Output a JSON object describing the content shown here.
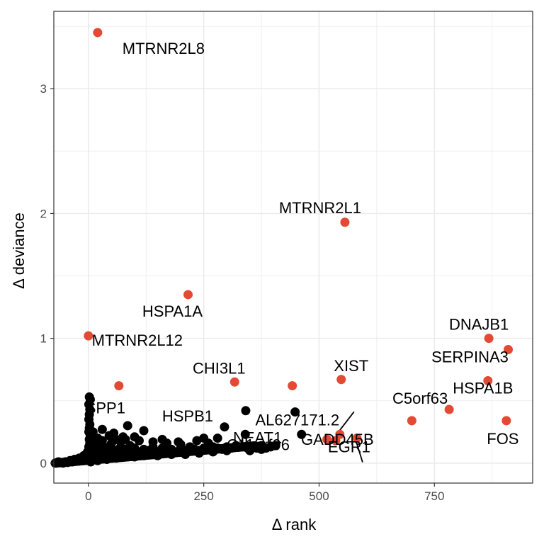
{
  "chart_data": {
    "type": "scatter",
    "xlabel": "Δ rank",
    "ylabel": "Δ deviance",
    "xlim": [
      -75,
      963
    ],
    "ylim": [
      -0.16,
      3.62
    ],
    "x_ticks": [
      0,
      250,
      500,
      750
    ],
    "y_ticks": [
      0,
      1,
      2,
      3
    ],
    "x_tick_labels": [
      "0",
      "250",
      "500",
      "750"
    ],
    "y_tick_labels": [
      "0",
      "1",
      "2",
      "3"
    ],
    "grid": true,
    "colors": {
      "highlight": "#e34a33",
      "default": "#000000",
      "grid": "#ebebeb"
    },
    "highlighted_points": [
      {
        "label": "MTRNR2L8",
        "x": 20,
        "y": 3.45
      },
      {
        "label": "MTRNR2L1",
        "x": 556,
        "y": 1.93
      },
      {
        "label": "HSPA1A",
        "x": 216,
        "y": 1.35
      },
      {
        "label": "MTRNR2L12",
        "x": 0,
        "y": 1.02
      },
      {
        "label": "DNAJB1",
        "x": 868,
        "y": 1.0
      },
      {
        "label": "SERPINA3",
        "x": 910,
        "y": 0.91
      },
      {
        "label": "XIST",
        "x": 548,
        "y": 0.67
      },
      {
        "label": "HSPA1B",
        "x": 866,
        "y": 0.66
      },
      {
        "label": "CHI3L1",
        "x": 317,
        "y": 0.65
      },
      {
        "label": "SPP1",
        "x": 66,
        "y": 0.62
      },
      {
        "label": "",
        "x": 442,
        "y": 0.62
      },
      {
        "label": "C5orf63",
        "x": 782,
        "y": 0.43
      },
      {
        "label": "FOS",
        "x": 906,
        "y": 0.34
      },
      {
        "label": "GADD45B",
        "x": 701,
        "y": 0.34
      },
      {
        "label": "AL627171.2",
        "x": 545,
        "y": 0.23
      },
      {
        "label": "EGR1",
        "x": 582,
        "y": 0.2
      },
      {
        "label": "C11orf96",
        "x": 517,
        "y": 0.19
      },
      {
        "label": "",
        "x": 536,
        "y": 0.18
      }
    ],
    "labeled_other_points": [
      {
        "label": "HSPB1",
        "x": 341,
        "y": 0.42
      },
      {
        "label": "NEAT1",
        "x": 448,
        "y": 0.41
      }
    ],
    "other_points": [
      {
        "x": 2,
        "y": 0.53
      },
      {
        "x": 4,
        "y": 0.51
      },
      {
        "x": 1,
        "y": 0.47
      },
      {
        "x": 3,
        "y": 0.43
      },
      {
        "x": 2,
        "y": 0.39
      },
      {
        "x": 1,
        "y": 0.35
      },
      {
        "x": 3,
        "y": 0.31
      },
      {
        "x": 2,
        "y": 0.28
      },
      {
        "x": 1,
        "y": 0.25
      },
      {
        "x": 4,
        "y": 0.22
      },
      {
        "x": 2,
        "y": 0.19
      },
      {
        "x": 3,
        "y": 0.16
      },
      {
        "x": 1,
        "y": 0.13
      },
      {
        "x": 5,
        "y": 0.11
      },
      {
        "x": -2,
        "y": 0.09
      },
      {
        "x": 6,
        "y": 0.08
      },
      {
        "x": -10,
        "y": 0.06
      },
      {
        "x": -20,
        "y": 0.04
      },
      {
        "x": -30,
        "y": 0.03
      },
      {
        "x": -40,
        "y": 0.02
      },
      {
        "x": -50,
        "y": 0.01
      },
      {
        "x": -60,
        "y": 0.005
      },
      {
        "x": -70,
        "y": 0.0
      },
      {
        "x": -65,
        "y": 0.01
      },
      {
        "x": -55,
        "y": 0.0
      },
      {
        "x": -45,
        "y": 0.005
      },
      {
        "x": -35,
        "y": 0.01
      },
      {
        "x": -25,
        "y": 0.02
      },
      {
        "x": -15,
        "y": 0.03
      },
      {
        "x": -5,
        "y": 0.05
      },
      {
        "x": 10,
        "y": 0.06
      },
      {
        "x": 15,
        "y": 0.08
      },
      {
        "x": 20,
        "y": 0.1
      },
      {
        "x": 25,
        "y": 0.05
      },
      {
        "x": 30,
        "y": 0.09
      },
      {
        "x": 35,
        "y": 0.07
      },
      {
        "x": 40,
        "y": 0.11
      },
      {
        "x": 45,
        "y": 0.06
      },
      {
        "x": 50,
        "y": 0.12
      },
      {
        "x": 55,
        "y": 0.08
      },
      {
        "x": 60,
        "y": 0.1
      },
      {
        "x": 65,
        "y": 0.07
      },
      {
        "x": 70,
        "y": 0.13
      },
      {
        "x": 75,
        "y": 0.09
      },
      {
        "x": 80,
        "y": 0.11
      },
      {
        "x": 85,
        "y": 0.08
      },
      {
        "x": 90,
        "y": 0.14
      },
      {
        "x": 95,
        "y": 0.1
      },
      {
        "x": 100,
        "y": 0.12
      },
      {
        "x": 110,
        "y": 0.09
      },
      {
        "x": 120,
        "y": 0.11
      },
      {
        "x": 130,
        "y": 0.1
      },
      {
        "x": 140,
        "y": 0.13
      },
      {
        "x": 150,
        "y": 0.09
      },
      {
        "x": 160,
        "y": 0.12
      },
      {
        "x": 170,
        "y": 0.1
      },
      {
        "x": 180,
        "y": 0.11
      },
      {
        "x": 190,
        "y": 0.09
      },
      {
        "x": 200,
        "y": 0.12
      },
      {
        "x": 210,
        "y": 0.1
      },
      {
        "x": 220,
        "y": 0.13
      },
      {
        "x": 230,
        "y": 0.11
      },
      {
        "x": 240,
        "y": 0.1
      },
      {
        "x": 250,
        "y": 0.12
      },
      {
        "x": 260,
        "y": 0.11
      },
      {
        "x": 270,
        "y": 0.13
      },
      {
        "x": 280,
        "y": 0.12
      },
      {
        "x": 290,
        "y": 0.11
      },
      {
        "x": 300,
        "y": 0.13
      },
      {
        "x": 310,
        "y": 0.12
      },
      {
        "x": 320,
        "y": 0.14
      },
      {
        "x": 330,
        "y": 0.13
      },
      {
        "x": 345,
        "y": 0.12
      },
      {
        "x": 5,
        "y": 0.01
      },
      {
        "x": 20,
        "y": 0.02
      },
      {
        "x": 40,
        "y": 0.03
      },
      {
        "x": 60,
        "y": 0.04
      },
      {
        "x": 80,
        "y": 0.05
      },
      {
        "x": 100,
        "y": 0.05
      },
      {
        "x": 120,
        "y": 0.06
      },
      {
        "x": 150,
        "y": 0.06
      },
      {
        "x": 180,
        "y": 0.07
      },
      {
        "x": 210,
        "y": 0.07
      },
      {
        "x": 240,
        "y": 0.08
      },
      {
        "x": 270,
        "y": 0.09
      },
      {
        "x": 300,
        "y": 0.1
      },
      {
        "x": 20,
        "y": 0.2
      },
      {
        "x": 10,
        "y": 0.25
      },
      {
        "x": 30,
        "y": 0.18
      },
      {
        "x": 50,
        "y": 0.16
      },
      {
        "x": 70,
        "y": 0.17
      },
      {
        "x": 25,
        "y": 0.15
      },
      {
        "x": 15,
        "y": 0.16
      },
      {
        "x": 45,
        "y": 0.22
      },
      {
        "x": 80,
        "y": 0.19
      },
      {
        "x": 110,
        "y": 0.18
      },
      {
        "x": 140,
        "y": 0.17
      },
      {
        "x": 170,
        "y": 0.16
      },
      {
        "x": 30,
        "y": 0.27
      },
      {
        "x": 85,
        "y": 0.3
      },
      {
        "x": 120,
        "y": 0.26
      },
      {
        "x": 100,
        "y": 0.21
      },
      {
        "x": 55,
        "y": 0.24
      },
      {
        "x": 60,
        "y": 0.19
      },
      {
        "x": 10,
        "y": 0.14
      },
      {
        "x": 35,
        "y": 0.13
      },
      {
        "x": 90,
        "y": 0.08
      },
      {
        "x": 130,
        "y": 0.07
      },
      {
        "x": 200,
        "y": 0.15
      },
      {
        "x": 235,
        "y": 0.18
      },
      {
        "x": 295,
        "y": 0.29
      },
      {
        "x": 260,
        "y": 0.16
      },
      {
        "x": 340,
        "y": 0.23
      },
      {
        "x": 355,
        "y": 0.13
      },
      {
        "x": 375,
        "y": 0.14
      },
      {
        "x": 375,
        "y": 0.11
      },
      {
        "x": 405,
        "y": 0.14
      },
      {
        "x": 462,
        "y": 0.23
      },
      {
        "x": 350,
        "y": 0.1
      },
      {
        "x": 365,
        "y": 0.12
      },
      {
        "x": 385,
        "y": 0.12
      },
      {
        "x": 395,
        "y": 0.13
      },
      {
        "x": 280,
        "y": 0.2
      },
      {
        "x": 250,
        "y": 0.2
      },
      {
        "x": 195,
        "y": 0.17
      },
      {
        "x": 160,
        "y": 0.19
      },
      {
        "x": 75,
        "y": 0.21
      }
    ]
  }
}
